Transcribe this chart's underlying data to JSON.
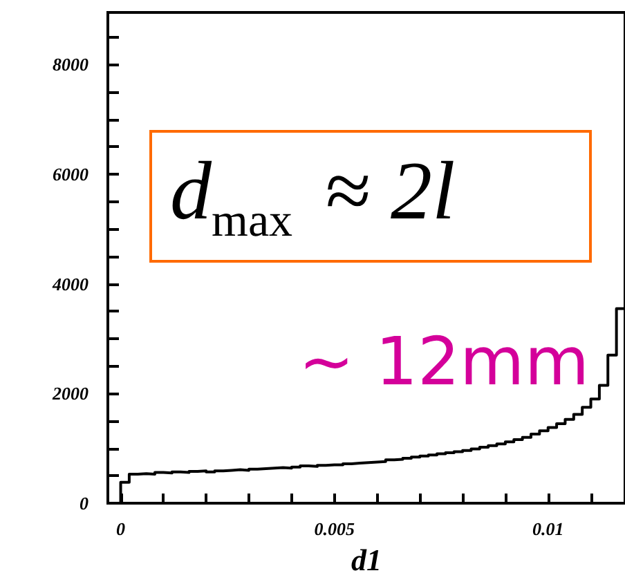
{
  "chart_data": {
    "type": "histogram",
    "xlabel": "d1",
    "bins": [
      0,
      0.0002,
      0.0004,
      0.0006,
      0.0008,
      0.001,
      0.0012,
      0.0014,
      0.0016,
      0.0018,
      0.002,
      0.0022,
      0.0024,
      0.0026,
      0.0028,
      0.003,
      0.0032,
      0.0034,
      0.0036,
      0.0038,
      0.004,
      0.0042,
      0.0044,
      0.0046,
      0.0048,
      0.005,
      0.0052,
      0.0054,
      0.0056,
      0.0058,
      0.006,
      0.0062,
      0.0064,
      0.0066,
      0.0068,
      0.007,
      0.0072,
      0.0074,
      0.0076,
      0.0078,
      0.008,
      0.0082,
      0.0084,
      0.0086,
      0.0088,
      0.009,
      0.0092,
      0.0094,
      0.0096,
      0.0098,
      0.01,
      0.0102,
      0.0104,
      0.0106,
      0.0108,
      0.011,
      0.0112,
      0.0114,
      0.0116,
      0.0118
    ],
    "values": [
      380,
      530,
      540,
      530,
      560,
      550,
      570,
      560,
      580,
      590,
      570,
      590,
      600,
      610,
      600,
      620,
      630,
      640,
      650,
      640,
      660,
      680,
      670,
      690,
      700,
      700,
      720,
      730,
      740,
      750,
      760,
      790,
      800,
      820,
      840,
      860,
      880,
      900,
      920,
      940,
      960,
      990,
      1020,
      1050,
      1080,
      1120,
      1160,
      1200,
      1260,
      1320,
      1380,
      1450,
      1530,
      1620,
      1750,
      1900,
      2150,
      2700,
      3550
    ],
    "color": "#000000",
    "xlim": [
      -0.0003,
      0.0118
    ],
    "xticks": [
      0,
      {
        "value": 0.001,
        "label": null
      },
      {
        "value": 0.002,
        "label": null
      },
      {
        "value": 0.003,
        "label": null
      },
      {
        "value": 0.004,
        "label": null
      },
      0.005,
      {
        "value": 0.006,
        "label": null
      },
      {
        "value": 0.007,
        "label": null
      },
      {
        "value": 0.008,
        "label": null
      },
      {
        "value": 0.009,
        "label": null
      },
      0.01,
      {
        "value": 0.011,
        "label": null
      }
    ],
    "ylim": [
      0,
      8950
    ],
    "yticks": [
      0,
      {
        "value": 500,
        "label": null
      },
      {
        "value": 1000,
        "label": null
      },
      {
        "value": 1500,
        "label": null
      },
      2000,
      {
        "value": 2500,
        "label": null
      },
      {
        "value": 3000,
        "label": null
      },
      {
        "value": 3500,
        "label": null
      },
      4000,
      {
        "value": 4500,
        "label": null
      },
      {
        "value": 5000,
        "label": null
      },
      {
        "value": 5500,
        "label": null
      },
      6000,
      {
        "value": 6500,
        "label": null
      },
      {
        "value": 7000,
        "label": null
      },
      {
        "value": 7500,
        "label": null
      },
      8000,
      {
        "value": 8500,
        "label": null
      }
    ],
    "annotations": [
      "d$_{max}$ ≈ 2l",
      "~ 12mm"
    ],
    "grid": false
  }
}
